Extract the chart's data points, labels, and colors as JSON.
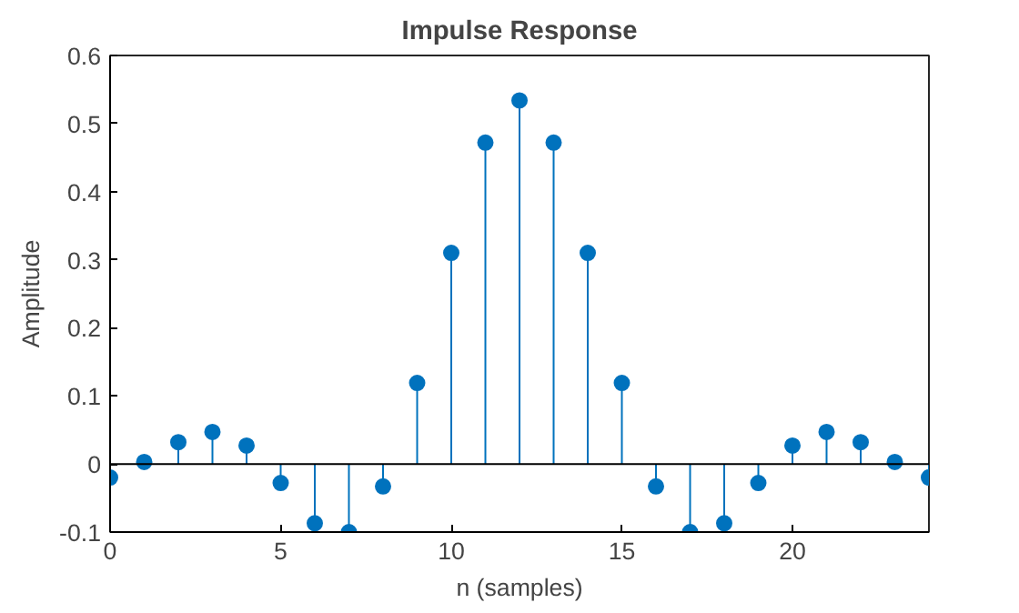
{
  "chart_data": {
    "type": "lollipop",
    "title": "Impulse Response",
    "xlabel": "n (samples)",
    "ylabel": "Amplitude",
    "x": [
      0,
      1,
      2,
      3,
      4,
      5,
      6,
      7,
      8,
      9,
      10,
      11,
      12,
      13,
      14,
      15,
      16,
      17,
      18,
      19,
      20,
      21,
      22,
      23,
      24
    ],
    "series": [
      {
        "color": "#0072bd",
        "values": [
          -0.02,
          0.003,
          0.032,
          0.047,
          0.027,
          -0.028,
          -0.087,
          -0.1,
          -0.033,
          0.119,
          0.31,
          0.472,
          0.534,
          0.472,
          0.31,
          0.119,
          -0.033,
          -0.1,
          -0.087,
          -0.028,
          0.027,
          0.047,
          0.032,
          0.003,
          -0.02
        ]
      }
    ],
    "xlim": [
      0,
      24
    ],
    "xticks": [
      0,
      5,
      10,
      15,
      20
    ],
    "ylim": [
      -0.1,
      0.6
    ],
    "yticks": [
      -0.1,
      0,
      0.1,
      0.2,
      0.3,
      0.4,
      0.5,
      0.6
    ],
    "ref_lines": [
      {
        "axis": "y",
        "value": 0,
        "color": "#000000"
      }
    ],
    "marker": "circle",
    "grid": false
  }
}
